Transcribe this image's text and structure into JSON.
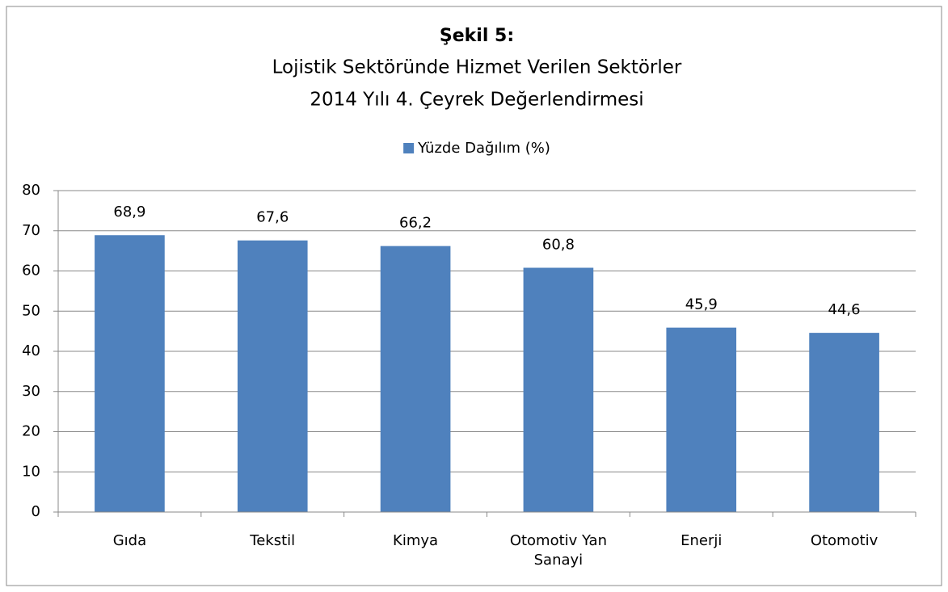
{
  "chart_data": {
    "type": "bar",
    "title": "Şekil 5:",
    "subtitle": [
      "Lojistik Sektöründe Hizmet Verilen Sektörler",
      "2014 Yılı 4. Çeyrek Değerlendirmesi"
    ],
    "categories": [
      "Gıda",
      "Tekstil",
      "Kimya",
      "Otomotiv Yan Sanayi",
      "Enerji",
      "Otomotiv"
    ],
    "series": [
      {
        "name": "Yüzde Dağılım (%)",
        "color": "#4f81bd",
        "values": [
          68.9,
          67.6,
          66.2,
          60.8,
          45.9,
          44.6
        ],
        "value_labels": [
          "68,9",
          "67,6",
          "66,2",
          "60,8",
          "45,9",
          "44,6"
        ]
      }
    ],
    "ylim": [
      0,
      80
    ],
    "yticks": [
      0,
      10,
      20,
      30,
      40,
      50,
      60,
      70,
      80
    ],
    "grid": true,
    "legend": "top"
  }
}
